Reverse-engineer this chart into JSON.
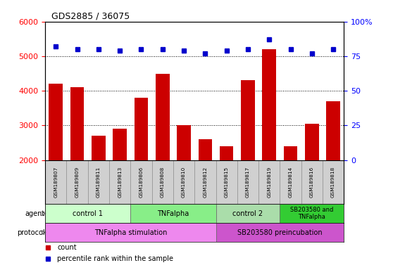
{
  "title": "GDS2885 / 36075",
  "samples": [
    "GSM189807",
    "GSM189809",
    "GSM189811",
    "GSM189813",
    "GSM189806",
    "GSM189808",
    "GSM189810",
    "GSM189812",
    "GSM189815",
    "GSM189817",
    "GSM189819",
    "GSM189814",
    "GSM189816",
    "GSM189818"
  ],
  "counts": [
    4200,
    4100,
    2700,
    2900,
    3800,
    4500,
    3000,
    2600,
    2400,
    4300,
    5200,
    2400,
    3050,
    3700
  ],
  "percentile_ranks": [
    82,
    80,
    80,
    79,
    80,
    80,
    79,
    77,
    79,
    80,
    87,
    80,
    77,
    80
  ],
  "ylim_left": [
    2000,
    6000
  ],
  "ylim_right": [
    0,
    100
  ],
  "yticks_left": [
    2000,
    3000,
    4000,
    5000,
    6000
  ],
  "yticks_right": [
    0,
    25,
    50,
    75,
    100
  ],
  "bar_color": "#cc0000",
  "dot_color": "#0000cc",
  "agent_groups": [
    {
      "label": "control 1",
      "start": 0,
      "end": 4,
      "color": "#ccffcc"
    },
    {
      "label": "TNFalpha",
      "start": 4,
      "end": 8,
      "color": "#88ee88"
    },
    {
      "label": "control 2",
      "start": 8,
      "end": 11,
      "color": "#aaddaa"
    },
    {
      "label": "SB203580 and\nTNFalpha",
      "start": 11,
      "end": 14,
      "color": "#33cc33"
    }
  ],
  "protocol_groups": [
    {
      "label": "TNFalpha stimulation",
      "start": 0,
      "end": 8,
      "color": "#ee88ee"
    },
    {
      "label": "SB203580 preincubation",
      "start": 8,
      "end": 14,
      "color": "#cc55cc"
    }
  ],
  "agent_label_colors": [
    "#000000",
    "#000000",
    "#000000",
    "#000000"
  ],
  "proto_label_colors": [
    "#000000",
    "#000000"
  ],
  "sample_cell_color": "#d0d0d0",
  "legend_count_color": "#cc0000",
  "legend_pct_color": "#0000cc"
}
